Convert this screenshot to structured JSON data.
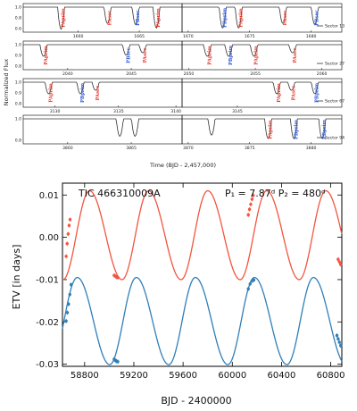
{
  "chart_data": [
    {
      "type": "line",
      "panel": "light-curves",
      "xlabel": "Time (BJD - 2,457,000)",
      "ylabel": "Normalized Flux",
      "rows": [
        {
          "legend": "Sector 13",
          "segments": [
            {
              "xlim": [
                1655.5,
                1668.5
              ],
              "ticks": [
                1660,
                1665
              ],
              "tick_labels": [
                "1660",
                "1665"
              ]
            },
            {
              "xlim": [
                1669.5,
                1682.5
              ],
              "ticks": [
                1670,
                1675,
                1680
              ],
              "tick_labels": [
                "1670",
                "1675",
                "1680"
              ]
            }
          ],
          "yticks": [
            "1.0",
            "0.8",
            "0.6"
          ],
          "dips": [
            {
              "x": 1658.6,
              "depth": 0.38,
              "label": "PAprim",
              "color": "#e8392e"
            },
            {
              "x": 1662.4,
              "depth": 0.28,
              "label": "PAsec",
              "color": "#e8392e"
            },
            {
              "x": 1664.7,
              "depth": 0.3,
              "label": "PBsec",
              "color": "#2e58d8"
            },
            {
              "x": 1666.4,
              "depth": 0.36,
              "label": "PAprim",
              "color": "#e8392e"
            },
            {
              "x": 1672.8,
              "depth": 0.36,
              "label": "PBprim",
              "color": "#2e58d8"
            },
            {
              "x": 1674.1,
              "depth": 0.36,
              "label": "PAprim",
              "color": "#e8392e"
            },
            {
              "x": 1677.7,
              "depth": 0.28,
              "label": "PAsec",
              "color": "#e8392e"
            },
            {
              "x": 1680.3,
              "depth": 0.3,
              "label": "PBsec",
              "color": "#2e58d8"
            }
          ]
        },
        {
          "legend": "Sector 27",
          "segments": [
            {
              "xlim": [
                2036.5,
                2049.0
              ],
              "ticks": [
                2040,
                2045
              ],
              "tick_labels": [
                "2040",
                "2045"
              ]
            },
            {
              "xlim": [
                2049.5,
                2061.5
              ],
              "ticks": [
                2050,
                2055,
                2060
              ],
              "tick_labels": [
                "2050",
                "2055",
                "2060"
              ]
            }
          ],
          "yticks": [
            "1.0",
            "0.9",
            "0.8"
          ],
          "dips": [
            {
              "x": 2038.1,
              "depth": 0.2,
              "label": "PAprim",
              "color": "#e8392e"
            },
            {
              "x": 2044.6,
              "depth": 0.18,
              "label": "PBsec",
              "color": "#2e58d8"
            },
            {
              "x": 2045.9,
              "depth": 0.14,
              "label": "PAsec",
              "color": "#e8392e"
            },
            {
              "x": 2051.4,
              "depth": 0.2,
              "label": "PAprim",
              "color": "#e8392e"
            },
            {
              "x": 2053.0,
              "depth": 0.2,
              "label": "PBprim",
              "color": "#2e58d8"
            },
            {
              "x": 2054.9,
              "depth": 0.2,
              "label": "PAprim",
              "color": "#e8392e"
            },
            {
              "x": 2057.8,
              "depth": 0.14,
              "label": "PAsec",
              "color": "#e8392e"
            }
          ]
        },
        {
          "legend": "Sector 67",
          "segments": [
            {
              "xlim": [
                3127.5,
                3140.0
              ],
              "ticks": [
                3130,
                3135
              ],
              "tick_labels": [
                "3130",
                "3135"
              ]
            },
            {
              "xlim": [
                3140.5,
                3153.5
              ],
              "ticks": [
                3140,
                3145
              ],
              "tick_labels": [
                "3140",
                "3145"
              ]
            }
          ],
          "yticks": [
            "1.0",
            "0.9",
            "0.8"
          ],
          "dips": [
            {
              "x": 3129.5,
              "depth": 0.2,
              "label": "PAprim",
              "color": "#e8392e"
            },
            {
              "x": 3132.0,
              "depth": 0.2,
              "label": "PBprim",
              "color": "#2e58d8"
            },
            {
              "x": 3133.2,
              "depth": 0.14,
              "label": "PAsec",
              "color": "#e8392e"
            },
            {
              "x": 3148.2,
              "depth": 0.2,
              "label": "PAprim",
              "color": "#e8392e"
            },
            {
              "x": 3149.4,
              "depth": 0.14,
              "label": "PAsec",
              "color": "#e8392e"
            },
            {
              "x": 3151.3,
              "depth": 0.2,
              "label": "PBprim",
              "color": "#2e58d8"
            }
          ]
        },
        {
          "legend": "Sector 94",
          "segments": [
            {
              "xlim": [
                3856.5,
                3869.0
              ],
              "ticks": [
                3860,
                3865
              ],
              "tick_labels": [
                "3860",
                "3865"
              ]
            },
            {
              "xlim": [
                3869.5,
                3882.5
              ],
              "ticks": [
                3870,
                3875,
                3880
              ],
              "tick_labels": [
                "3870",
                "3875",
                "3880"
              ]
            }
          ],
          "yticks": [
            "1.0",
            "0.8"
          ],
          "dips": [
            {
              "x": 3864.1,
              "depth": 0.3,
              "label": "",
              "color": "#e8392e"
            },
            {
              "x": 3865.3,
              "depth": 0.3,
              "label": "",
              "color": "#e8392e"
            },
            {
              "x": 3871.9,
              "depth": 0.28,
              "label": "",
              "color": "#e8392e"
            },
            {
              "x": 3876.5,
              "depth": 0.34,
              "label": "PAprim",
              "color": "#e8392e"
            },
            {
              "x": 3878.6,
              "depth": 0.34,
              "label": "PBprim",
              "color": "#2e58d8"
            },
            {
              "x": 3880.9,
              "depth": 0.34,
              "label": "PBprim",
              "color": "#2e58d8"
            }
          ]
        }
      ]
    },
    {
      "type": "line",
      "panel": "etv",
      "xlabel": "BJD - 2400000",
      "ylabel": "ETV [in days]",
      "xlim": [
        58620,
        60890
      ],
      "ylim": [
        -0.0305,
        0.0128
      ],
      "xticks": [
        58800,
        59200,
        59600,
        60000,
        60400,
        60800
      ],
      "xtick_labels": [
        "58800",
        "59200",
        "59600",
        "60000",
        "60400",
        "60800"
      ],
      "yticks": [
        0.01,
        0.0,
        -0.01,
        -0.02,
        -0.03
      ],
      "ytick_labels": [
        "0.01",
        "0.00",
        "-0.01",
        "-0.02",
        "-0.03"
      ],
      "annotations": {
        "target": "TIC 466310009A",
        "periods": "P₁ = 7.87ᵈ P₂ = 480ᵈ"
      },
      "period_days": 480,
      "series": [
        {
          "color": "#f2553f",
          "model": {
            "offset": 0.0005,
            "amplitude": 0.0105,
            "max_phase_x": 58840,
            "shape": 0.55
          },
          "points": [
            [
              58650,
              -0.0045
            ],
            [
              58658,
              -0.0015
            ],
            [
              58666,
              0.0008
            ],
            [
              58674,
              0.0028
            ],
            [
              58682,
              0.0042
            ],
            [
              59040,
              -0.009
            ],
            [
              59050,
              -0.0092
            ],
            [
              59060,
              -0.0094
            ],
            [
              59070,
              -0.0095
            ],
            [
              60130,
              0.0053
            ],
            [
              60140,
              0.0066
            ],
            [
              60150,
              0.0078
            ],
            [
              60160,
              0.009
            ],
            [
              60170,
              0.0099
            ],
            [
              60860,
              -0.0052
            ],
            [
              60870,
              -0.0058
            ],
            [
              60880,
              -0.0064
            ]
          ]
        },
        {
          "color": "#2f7fb8",
          "model": {
            "offset": -0.0198,
            "amplitude": 0.0103,
            "max_phase_x": 58740,
            "shape": 0.55
          },
          "points": [
            [
              58650,
              -0.0198
            ],
            [
              58660,
              -0.0178
            ],
            [
              58670,
              -0.0158
            ],
            [
              58680,
              -0.0135
            ],
            [
              58690,
              -0.0112
            ],
            [
              59040,
              -0.0288
            ],
            [
              59050,
              -0.0291
            ],
            [
              59060,
              -0.0293
            ],
            [
              59070,
              -0.0294
            ],
            [
              60130,
              -0.0122
            ],
            [
              60145,
              -0.011
            ],
            [
              60160,
              -0.0103
            ],
            [
              60175,
              -0.0101
            ],
            [
              60850,
              -0.0232
            ],
            [
              60860,
              -0.024
            ],
            [
              60870,
              -0.0248
            ],
            [
              60880,
              -0.0256
            ]
          ]
        }
      ]
    }
  ]
}
